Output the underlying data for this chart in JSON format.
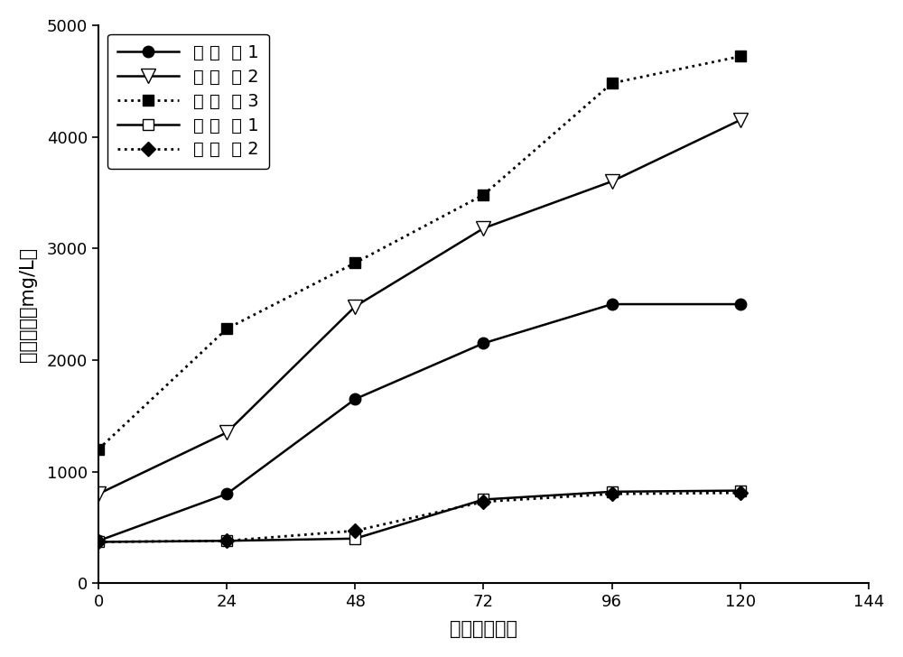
{
  "x": [
    0,
    24,
    48,
    72,
    96,
    120
  ],
  "series": [
    {
      "label": "实施例1",
      "y": [
        380,
        800,
        1650,
        2150,
        2500,
        2500
      ],
      "linestyle": "-",
      "marker": "o",
      "markerfacecolor": "black",
      "markeredgecolor": "black",
      "color": "black",
      "markersize": 9,
      "linewidth": 1.8
    },
    {
      "label": "实施例2",
      "y": [
        800,
        1350,
        2480,
        3180,
        3600,
        4150
      ],
      "linestyle": "-",
      "marker": "v",
      "markerfacecolor": "white",
      "markeredgecolor": "black",
      "color": "black",
      "markersize": 11,
      "linewidth": 1.8
    },
    {
      "label": "实施例3",
      "y": [
        1200,
        2280,
        2870,
        3480,
        4480,
        4720
      ],
      "linestyle": ":",
      "marker": "s",
      "markerfacecolor": "black",
      "markeredgecolor": "black",
      "color": "black",
      "markersize": 9,
      "linewidth": 2.0
    },
    {
      "label": "对比例1",
      "y": [
        370,
        380,
        400,
        750,
        820,
        830
      ],
      "linestyle": "-",
      "marker": "s",
      "markerfacecolor": "white",
      "markeredgecolor": "black",
      "color": "black",
      "markersize": 9,
      "linewidth": 1.8
    },
    {
      "label": "对比例2",
      "y": [
        370,
        380,
        470,
        730,
        800,
        810
      ],
      "linestyle": ":",
      "marker": "D",
      "markerfacecolor": "black",
      "markeredgecolor": "black",
      "color": "black",
      "markersize": 8,
      "linewidth": 2.0
    }
  ],
  "xlabel": "时间（小时）",
  "ylabel": "菌体产量（mg/L）",
  "xlim": [
    0,
    144
  ],
  "ylim": [
    0,
    5000
  ],
  "xticks": [
    0,
    24,
    48,
    72,
    96,
    120,
    144
  ],
  "yticks": [
    0,
    1000,
    2000,
    3000,
    4000,
    5000
  ],
  "legend_loc": "upper left",
  "background_color": "white",
  "label_spacing_map": {
    "实施例1": "实 施  例 1",
    "实施例2": "实 施  例 2",
    "实施例3": "实 施  例 3",
    "对比例1": "对 比  例 1",
    "对比例2": "对 比  例 2"
  }
}
